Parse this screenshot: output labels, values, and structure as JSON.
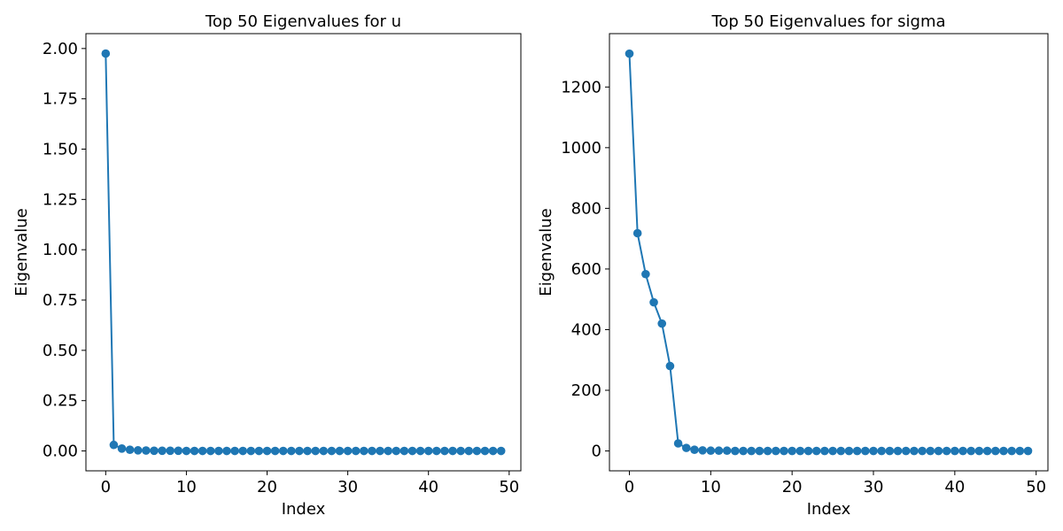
{
  "chart_data": [
    {
      "type": "line",
      "title": "Top 50 Eigenvalues for u",
      "xlabel": "Index",
      "ylabel": "Eigenvalue",
      "xlim": [
        -2.45,
        51.45
      ],
      "ylim": [
        -0.0988,
        2.074
      ],
      "xticks": [
        0,
        10,
        20,
        30,
        40,
        50
      ],
      "yticks": [
        0.0,
        0.25,
        0.5,
        0.75,
        1.0,
        1.25,
        1.5,
        1.75,
        2.0
      ],
      "ytick_labels": [
        "0.00",
        "0.25",
        "0.50",
        "0.75",
        "1.00",
        "1.25",
        "1.50",
        "1.75",
        "2.00"
      ],
      "grid": false,
      "color": "#1f77b4",
      "marker": "circle",
      "series": [
        {
          "x": [
            0,
            1,
            2,
            3,
            4,
            5,
            6,
            7,
            8,
            9,
            10,
            11,
            12,
            13,
            14,
            15,
            16,
            17,
            18,
            19,
            20,
            21,
            22,
            23,
            24,
            25,
            26,
            27,
            28,
            29,
            30,
            31,
            32,
            33,
            34,
            35,
            36,
            37,
            38,
            39,
            40,
            41,
            42,
            43,
            44,
            45,
            46,
            47,
            48,
            49
          ],
          "values": [
            1.975,
            0.03,
            0.012,
            0.006,
            0.003,
            0.002,
            0.001,
            0.001,
            0.001,
            0.001,
            0,
            0,
            0,
            0,
            0,
            0,
            0,
            0,
            0,
            0,
            0,
            0,
            0,
            0,
            0,
            0,
            0,
            0,
            0,
            0,
            0,
            0,
            0,
            0,
            0,
            0,
            0,
            0,
            0,
            0,
            0,
            0,
            0,
            0,
            0,
            0,
            0,
            0,
            0,
            0
          ]
        }
      ]
    },
    {
      "type": "line",
      "title": "Top 50 Eigenvalues for sigma",
      "xlabel": "Index",
      "ylabel": "Eigenvalue",
      "xlim": [
        -2.45,
        51.45
      ],
      "ylim": [
        -65.5,
        1376
      ],
      "xticks": [
        0,
        10,
        20,
        30,
        40,
        50
      ],
      "yticks": [
        0,
        200,
        400,
        600,
        800,
        1000,
        1200
      ],
      "ytick_labels": [
        "0",
        "200",
        "400",
        "600",
        "800",
        "1000",
        "1200"
      ],
      "grid": false,
      "color": "#1f77b4",
      "marker": "circle",
      "series": [
        {
          "x": [
            0,
            1,
            2,
            3,
            4,
            5,
            6,
            7,
            8,
            9,
            10,
            11,
            12,
            13,
            14,
            15,
            16,
            17,
            18,
            19,
            20,
            21,
            22,
            23,
            24,
            25,
            26,
            27,
            28,
            29,
            30,
            31,
            32,
            33,
            34,
            35,
            36,
            37,
            38,
            39,
            40,
            41,
            42,
            43,
            44,
            45,
            46,
            47,
            48,
            49
          ],
          "values": [
            1310,
            718,
            583,
            490,
            420,
            280,
            25,
            10,
            4,
            2,
            1,
            1,
            1,
            0,
            0,
            0,
            0,
            0,
            0,
            0,
            0,
            0,
            0,
            0,
            0,
            0,
            0,
            0,
            0,
            0,
            0,
            0,
            0,
            0,
            0,
            0,
            0,
            0,
            0,
            0,
            0,
            0,
            0,
            0,
            0,
            0,
            0,
            0,
            0,
            0
          ]
        }
      ]
    }
  ]
}
